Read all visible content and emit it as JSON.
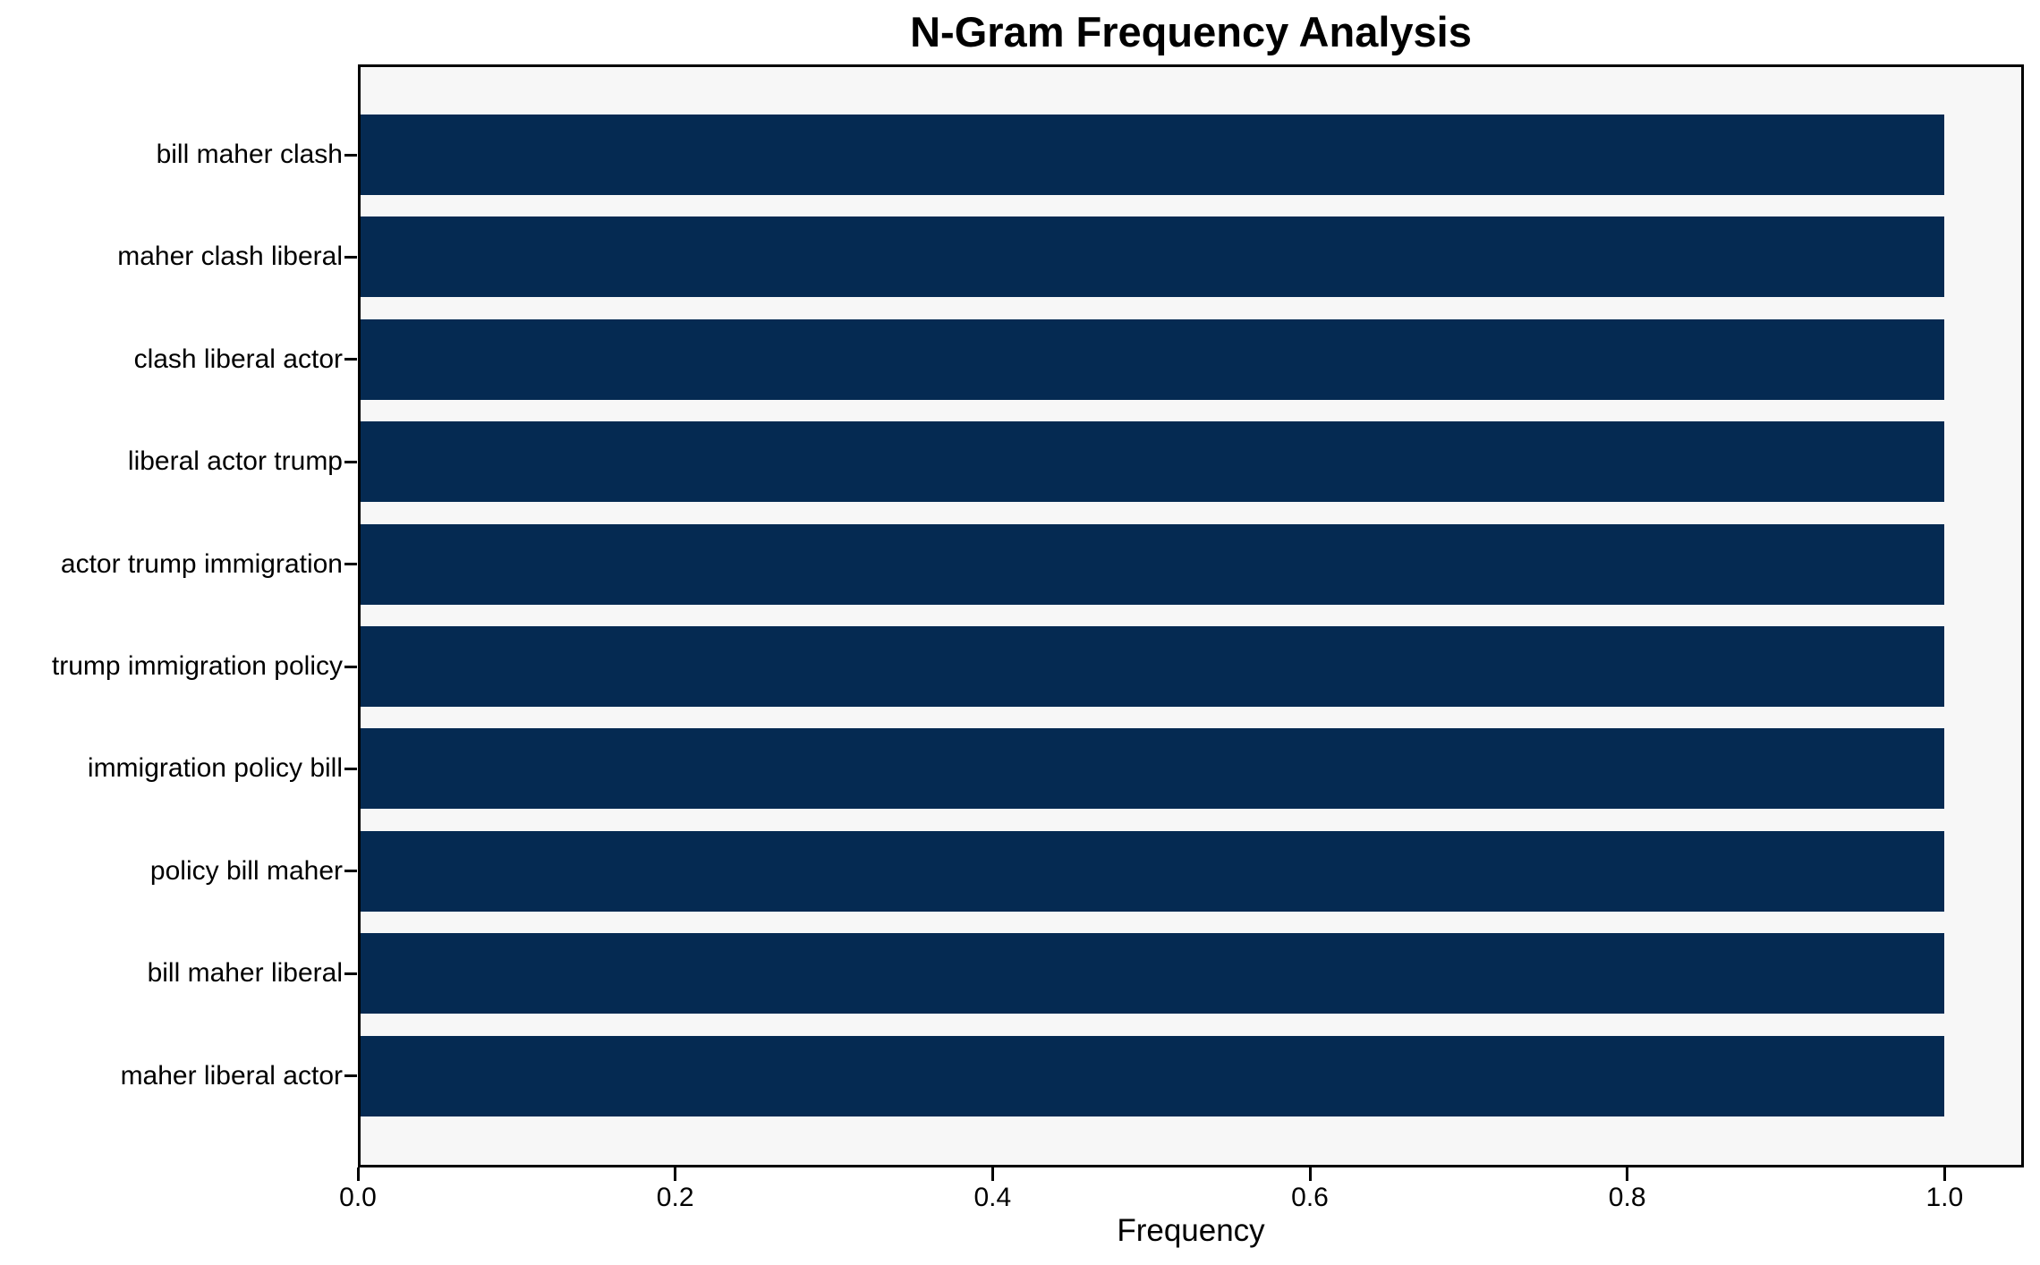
{
  "chart_data": {
    "type": "bar",
    "orientation": "horizontal",
    "title": "N-Gram Frequency Analysis",
    "xlabel": "Frequency",
    "ylabel": "",
    "categories": [
      "bill maher clash",
      "maher clash liberal",
      "clash liberal actor",
      "liberal actor trump",
      "actor trump immigration",
      "trump immigration policy",
      "immigration policy bill",
      "policy bill maher",
      "bill maher liberal",
      "maher liberal actor"
    ],
    "values": [
      1.0,
      1.0,
      1.0,
      1.0,
      1.0,
      1.0,
      1.0,
      1.0,
      1.0,
      1.0
    ],
    "xticks": [
      {
        "value": 0.0,
        "label": "0.0"
      },
      {
        "value": 0.2,
        "label": "0.2"
      },
      {
        "value": 0.4,
        "label": "0.4"
      },
      {
        "value": 0.6,
        "label": "0.6"
      },
      {
        "value": 0.8,
        "label": "0.8"
      },
      {
        "value": 1.0,
        "label": "1.0"
      }
    ],
    "xlim": [
      0.0,
      1.05
    ],
    "grid": false,
    "legend": null,
    "colors": {
      "bar": "#052a52",
      "plot_bg": "#f7f7f7",
      "figure_bg": "#ffffff",
      "spine": "#000000",
      "text": "#000000"
    }
  }
}
